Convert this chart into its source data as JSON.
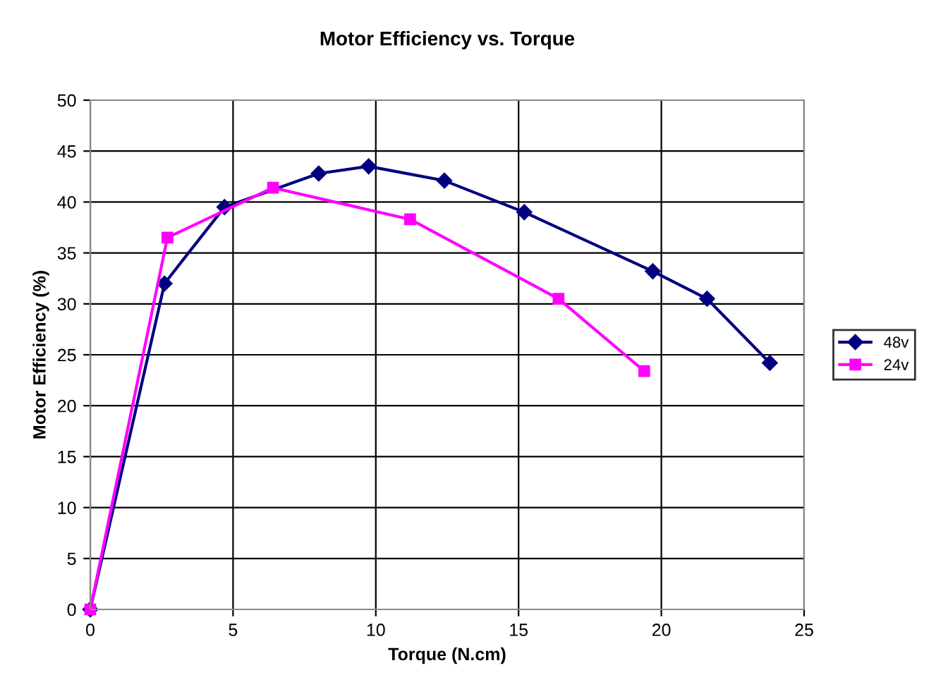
{
  "chart_data": {
    "type": "line",
    "title": "Motor Efficiency vs. Torque",
    "xlabel": "Torque (N.cm)",
    "ylabel": "Motor Efficiency (%)",
    "xlim": [
      0,
      25
    ],
    "xticks": [
      0,
      5,
      10,
      15,
      20,
      25
    ],
    "ylim": [
      0,
      50
    ],
    "yticks": [
      0,
      5,
      10,
      15,
      20,
      25,
      30,
      35,
      40,
      45,
      50
    ],
    "grid": true,
    "legend": "right",
    "series": [
      {
        "name": "48v",
        "color": "#000080",
        "marker": "diamond",
        "x": [
          0,
          2.6,
          4.7,
          8.0,
          9.75,
          12.4,
          15.2,
          19.7,
          21.6,
          23.8
        ],
        "values": [
          0,
          32.0,
          39.5,
          42.8,
          43.5,
          42.1,
          39.0,
          33.2,
          30.5,
          24.2
        ]
      },
      {
        "name": "24v",
        "color": "#ff00ff",
        "marker": "square",
        "x": [
          0,
          2.7,
          6.4,
          11.2,
          16.4,
          19.4
        ],
        "values": [
          0,
          36.5,
          41.4,
          38.3,
          30.5,
          23.4
        ]
      }
    ]
  }
}
